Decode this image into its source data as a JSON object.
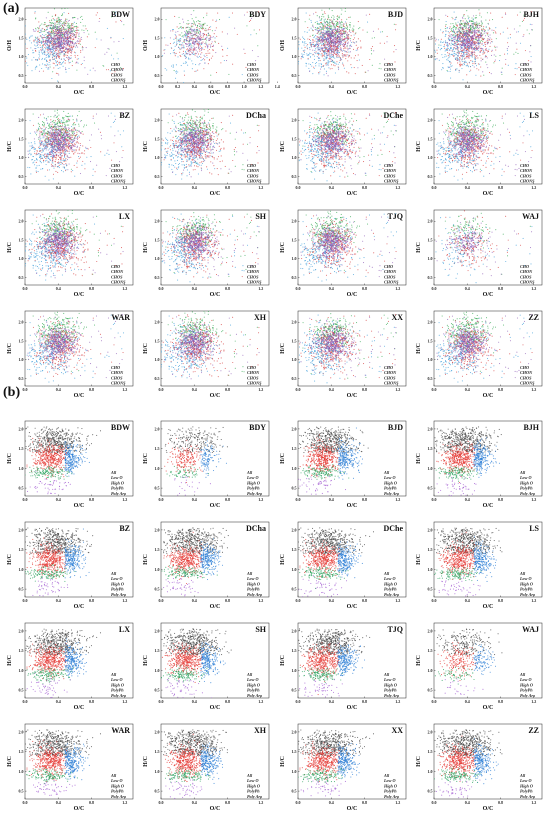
{
  "figure": {
    "panels": [
      {
        "letter": "(a)",
        "sites": [
          "BDW",
          "BDY",
          "BJD",
          "BJH",
          "BZ",
          "DCha",
          "DChe",
          "LS",
          "LX",
          "SH",
          "TJQ",
          "WAJ",
          "WAR",
          "XH",
          "XX",
          "ZZ"
        ],
        "ylabels": [
          "O/H",
          "O/H",
          "O/H",
          "H/C",
          "H/C",
          "H/C",
          "H/C",
          "H/C",
          "H/C",
          "H/C",
          "H/C",
          "H/C",
          "H/C",
          "H/C",
          "H/C",
          "H/C"
        ],
        "legend": [
          "CHO",
          "CHON",
          "CHOS",
          "CHONS"
        ],
        "colors": {
          "CHO": "#d63b3b",
          "CHON": "#3a9bd8",
          "CHOS": "#34a853",
          "CHONS": "#8e5bb5"
        }
      },
      {
        "letter": "(b)",
        "sites": [
          "BDW",
          "BDY",
          "BJD",
          "BJH",
          "BZ",
          "DCha",
          "DChe",
          "LS",
          "LX",
          "SH",
          "TJQ",
          "WAJ",
          "WAR",
          "XH",
          "XX",
          "ZZ"
        ],
        "ylabels": [
          "H/C",
          "H/C",
          "H/C",
          "H/C",
          "H/C",
          "H/C",
          "H/C",
          "H/C",
          "H/C",
          "H/C",
          "H/C",
          "H/C",
          "H/C",
          "H/C",
          "H/C",
          "H/C"
        ],
        "legend": [
          "All",
          "Low O",
          "High O",
          "PolyPh",
          "Poly Aro"
        ],
        "colors": {
          "All": "#444444",
          "Low O": "#e53935",
          "High O": "#2e7fd6",
          "PolyPh": "#2ca25f",
          "Poly Aro": "#a15bd1"
        }
      }
    ]
  },
  "chart_data": [
    {
      "type": "scatter",
      "panel": "(a)",
      "xlabel": "O/C",
      "ylabel": "H/C",
      "xlim": [
        0,
        1.3
      ],
      "ylim": [
        0.3,
        2.3
      ],
      "xticks": [
        0.0,
        0.4,
        0.8,
        1.2
      ],
      "yticks": [
        0.5,
        1.0,
        1.5,
        2.0
      ],
      "xticks_BDY": [
        0.0,
        0.2,
        0.4,
        0.6,
        0.8,
        1.0,
        1.2,
        1.4
      ],
      "series": [
        {
          "name": "CHO",
          "points": [
            [
              0.3,
              1.45
            ],
            [
              0.42,
              1.3
            ],
            [
              0.55,
              1.1
            ],
            [
              0.35,
              1.7
            ],
            [
              0.6,
              0.9
            ]
          ]
        },
        {
          "name": "CHON",
          "points": [
            [
              0.15,
              1.2
            ],
            [
              0.25,
              1.0
            ],
            [
              0.45,
              1.35
            ],
            [
              0.5,
              0.8
            ],
            [
              0.2,
              1.55
            ]
          ]
        },
        {
          "name": "CHOS",
          "points": [
            [
              0.4,
              1.85
            ],
            [
              0.55,
              1.95
            ],
            [
              0.32,
              2.0
            ],
            [
              0.65,
              1.75
            ],
            [
              0.48,
              1.6
            ]
          ]
        },
        {
          "name": "CHONS",
          "points": [
            [
              0.38,
              1.5
            ],
            [
              0.45,
              1.4
            ],
            [
              0.5,
              1.6
            ],
            [
              0.3,
              1.25
            ],
            [
              0.58,
              1.45
            ]
          ]
        }
      ]
    },
    {
      "type": "scatter",
      "panel": "(b)",
      "xlabel": "O/C",
      "ylabel": "H/C",
      "xlim": [
        0,
        1.3
      ],
      "ylim": [
        0.3,
        2.2
      ],
      "xticks": [
        0.0,
        0.4,
        0.8,
        1.2
      ],
      "yticks": [
        0.5,
        1.0,
        1.5,
        2.0
      ],
      "series": [
        {
          "name": "All",
          "points": [
            [
              0.3,
              1.8
            ],
            [
              0.4,
              1.7
            ],
            [
              0.25,
              1.9
            ],
            [
              0.5,
              1.75
            ]
          ]
        },
        {
          "name": "Low O",
          "points": [
            [
              0.2,
              1.3
            ],
            [
              0.3,
              1.2
            ],
            [
              0.35,
              1.4
            ],
            [
              0.25,
              1.1
            ]
          ]
        },
        {
          "name": "High O",
          "points": [
            [
              0.5,
              1.3
            ],
            [
              0.55,
              1.2
            ],
            [
              0.6,
              1.4
            ],
            [
              0.52,
              1.1
            ]
          ]
        },
        {
          "name": "PolyPh",
          "points": [
            [
              0.2,
              0.9
            ],
            [
              0.3,
              0.85
            ],
            [
              0.25,
              0.95
            ]
          ]
        },
        {
          "name": "Poly Aro",
          "points": [
            [
              0.15,
              0.55
            ],
            [
              0.25,
              0.6
            ],
            [
              0.35,
              0.5
            ]
          ]
        }
      ]
    }
  ]
}
